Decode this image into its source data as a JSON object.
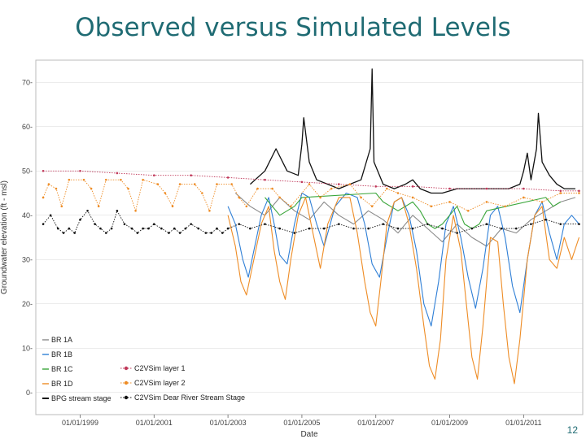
{
  "slide": {
    "title": "Observed versus Simulated Levels",
    "page_number": "12"
  },
  "colors": {
    "title": "#1f6b73",
    "br1a": "#8a8a8a",
    "br1b": "#2f7fd6",
    "br1c": "#3aa63a",
    "br1d": "#ee8c25",
    "stage_obs": "#111111",
    "layer1": "#c0395a",
    "layer2": "#ee8c25",
    "stage_sim": "#111111",
    "grid": "#d9d9d9"
  },
  "chart_data": {
    "type": "line",
    "title": "",
    "xlabel": "Date",
    "ylabel": "Groundwater elevation (ft - msl)",
    "xlim": [
      1997.8,
      2012.6
    ],
    "ylim": [
      -5,
      75
    ],
    "yticks": [
      0,
      10,
      20,
      30,
      40,
      50,
      60,
      70
    ],
    "ytick_labels": [
      "0-",
      "10-",
      "20-",
      "30-",
      "40-",
      "50-",
      "60-",
      "70-"
    ],
    "xticks": [
      1999,
      2001,
      2003,
      2005,
      2007,
      2009,
      2011
    ],
    "xtick_labels": [
      "01/01/1999",
      "01/01/2001",
      "01/01/2003",
      "01/01/2005",
      "01/01/2007",
      "01/01/2009",
      "01/01/2011"
    ],
    "legend_position": "bottom-left",
    "legend": [
      {
        "key": "br1a",
        "label": "BR 1A",
        "style": "line"
      },
      {
        "key": "br1b",
        "label": "BR 1B",
        "style": "line"
      },
      {
        "key": "br1c",
        "label": "BR 1C",
        "style": "line"
      },
      {
        "key": "br1d",
        "label": "BR 1D",
        "style": "line"
      },
      {
        "key": "stage_obs",
        "label": "BPG stream stage",
        "style": "line"
      },
      {
        "key": "layer1",
        "label": "C2VSim layer 1",
        "style": "dotline"
      },
      {
        "key": "layer2",
        "label": "C2VSim layer 2",
        "style": "dotline"
      },
      {
        "key": "stage_sim",
        "label": "C2VSim Dear River Stream Stage",
        "style": "dotline"
      }
    ],
    "series": [
      {
        "name": "BR 1A",
        "key": "br1a",
        "style": "line",
        "x": [
          2003.2,
          2003.6,
          2004.0,
          2004.4,
          2004.8,
          2005.2,
          2005.6,
          2006.0,
          2006.4,
          2006.8,
          2007.2,
          2007.6,
          2008.0,
          2008.4,
          2008.8,
          2009.2,
          2009.6,
          2010.0,
          2010.4,
          2010.8,
          2011.2,
          2011.6,
          2012.0,
          2012.4
        ],
        "y": [
          45,
          42,
          40,
          44,
          41,
          39,
          43,
          40,
          38,
          41,
          39,
          36,
          40,
          37,
          34,
          38,
          35,
          33,
          37,
          36,
          39,
          41,
          43,
          44
        ]
      },
      {
        "name": "BR 1B",
        "key": "br1b",
        "style": "line",
        "x": [
          2003.0,
          2003.2,
          2003.4,
          2003.55,
          2003.7,
          2003.9,
          2004.1,
          2004.25,
          2004.4,
          2004.6,
          2004.8,
          2005.0,
          2005.2,
          2005.4,
          2005.6,
          2005.9,
          2006.2,
          2006.5,
          2006.7,
          2006.9,
          2007.1,
          2007.3,
          2007.5,
          2007.7,
          2007.9,
          2008.1,
          2008.3,
          2008.5,
          2008.7,
          2008.9,
          2009.1,
          2009.3,
          2009.5,
          2009.7,
          2009.9,
          2010.1,
          2010.3,
          2010.5,
          2010.7,
          2010.9,
          2011.1,
          2011.3,
          2011.5,
          2011.7,
          2011.9,
          2012.1,
          2012.3,
          2012.5
        ],
        "y": [
          42,
          38,
          30,
          26,
          32,
          40,
          44,
          38,
          31,
          29,
          38,
          45,
          44,
          38,
          33,
          42,
          45,
          44,
          38,
          29,
          26,
          35,
          43,
          44,
          40,
          32,
          20,
          15,
          25,
          38,
          42,
          35,
          26,
          19,
          28,
          40,
          42,
          35,
          24,
          18,
          30,
          40,
          43,
          36,
          30,
          38,
          40,
          38
        ]
      },
      {
        "name": "BR 1C",
        "key": "br1c",
        "style": "line",
        "x": [
          2004.0,
          2004.2,
          2004.4,
          2004.6,
          2004.8,
          2005.0,
          2007.0,
          2007.2,
          2007.4,
          2007.6,
          2007.8,
          2008.0,
          2008.2,
          2008.4,
          2008.6,
          2008.8,
          2009.0,
          2009.2,
          2009.4,
          2009.6,
          2009.8,
          2010.0,
          2011.6,
          2011.8,
          2012.0
        ],
        "y": [
          44,
          42,
          40,
          41,
          42,
          44,
          45,
          43,
          42,
          41,
          42,
          43,
          41,
          38,
          37,
          38,
          40,
          42,
          38,
          37,
          38,
          41,
          44,
          42,
          43
        ]
      },
      {
        "name": "BR 1D",
        "key": "br1d",
        "style": "line",
        "x": [
          2003.0,
          2003.2,
          2003.35,
          2003.5,
          2003.7,
          2003.9,
          2004.1,
          2004.25,
          2004.4,
          2004.55,
          2004.7,
          2004.9,
          2005.1,
          2005.3,
          2005.5,
          2005.7,
          2006.0,
          2006.3,
          2006.5,
          2006.7,
          2006.85,
          2007.0,
          2007.15,
          2007.3,
          2007.5,
          2007.7,
          2007.9,
          2008.1,
          2008.3,
          2008.45,
          2008.6,
          2008.75,
          2008.9,
          2009.1,
          2009.3,
          2009.45,
          2009.6,
          2009.75,
          2009.9,
          2010.1,
          2010.3,
          2010.45,
          2010.6,
          2010.75,
          2010.9,
          2011.1,
          2011.3,
          2011.5,
          2011.7,
          2011.9,
          2012.1,
          2012.3,
          2012.5
        ],
        "y": [
          40,
          33,
          25,
          22,
          30,
          38,
          42,
          32,
          25,
          21,
          30,
          40,
          44,
          36,
          28,
          38,
          44,
          44,
          36,
          25,
          18,
          15,
          26,
          38,
          43,
          44,
          38,
          28,
          15,
          6,
          3,
          12,
          30,
          40,
          32,
          20,
          8,
          3,
          15,
          35,
          34,
          20,
          8,
          2,
          12,
          30,
          40,
          42,
          30,
          28,
          35,
          30,
          35
        ]
      },
      {
        "name": "BPG stream stage",
        "key": "stage_obs",
        "style": "line",
        "x": [
          2003.6,
          2004.0,
          2004.3,
          2004.6,
          2004.9,
          2005.0,
          2005.05,
          2005.2,
          2005.4,
          2005.7,
          2006.0,
          2006.3,
          2006.6,
          2006.85,
          2006.9,
          2006.95,
          2007.2,
          2007.5,
          2007.8,
          2008.0,
          2008.2,
          2008.5,
          2008.8,
          2009.2,
          2009.6,
          2010.0,
          2010.3,
          2010.6,
          2010.9,
          2011.0,
          2011.1,
          2011.2,
          2011.35,
          2011.4,
          2011.5,
          2011.7,
          2011.9,
          2012.1,
          2012.4
        ],
        "y": [
          47,
          50,
          55,
          50,
          49,
          56,
          62,
          52,
          48,
          47,
          46,
          47,
          48,
          55,
          73,
          52,
          47,
          46,
          47,
          48,
          46,
          45,
          45,
          46,
          46,
          46,
          46,
          46,
          47,
          50,
          54,
          48,
          55,
          63,
          52,
          49,
          47,
          46,
          46
        ]
      },
      {
        "name": "C2VSim layer 1",
        "key": "layer1",
        "style": "dotline",
        "x": [
          1998.0,
          1999.0,
          2000.0,
          2001.0,
          2002.0,
          2003.0,
          2004.0,
          2005.0,
          2006.0,
          2007.0,
          2008.0,
          2009.0,
          2010.0,
          2011.0,
          2012.0,
          2012.5
        ],
        "y": [
          50,
          50,
          49.5,
          49,
          49,
          48.5,
          48,
          47.5,
          47,
          46.5,
          46.5,
          46,
          46,
          46,
          45.5,
          45.5
        ]
      },
      {
        "name": "C2VSim layer 2",
        "key": "layer2",
        "style": "dotline",
        "x": [
          1998.0,
          1998.15,
          1998.35,
          1998.5,
          1998.7,
          1999.1,
          1999.3,
          1999.5,
          1999.7,
          2000.1,
          2000.3,
          2000.5,
          2000.7,
          2001.1,
          2001.3,
          2001.5,
          2001.7,
          2002.1,
          2002.3,
          2002.5,
          2002.7,
          2003.1,
          2003.3,
          2003.5,
          2003.8,
          2004.2,
          2004.4,
          2004.7,
          2005.2,
          2005.5,
          2005.8,
          2006.3,
          2006.6,
          2006.9,
          2007.3,
          2007.6,
          2008.0,
          2008.5,
          2009.0,
          2009.5,
          2010.0,
          2010.5,
          2011.0,
          2011.5,
          2012.0,
          2012.5
        ],
        "y": [
          44,
          47,
          46,
          42,
          48,
          48,
          46,
          42,
          48,
          48,
          46,
          41,
          48,
          47,
          45,
          42,
          47,
          47,
          45,
          41,
          47,
          47,
          44,
          42,
          46,
          46,
          44,
          42,
          47,
          44,
          46,
          47,
          44,
          42,
          46,
          45,
          44,
          42,
          43,
          41,
          43,
          42,
          44,
          43,
          45,
          45
        ]
      },
      {
        "name": "C2VSim Dear River Stream Stage",
        "key": "stage_sim",
        "style": "dotline",
        "x": [
          1998.0,
          1998.2,
          1998.4,
          1998.55,
          1998.7,
          1998.85,
          1999.0,
          1999.2,
          1999.4,
          1999.55,
          1999.7,
          1999.85,
          2000.0,
          2000.2,
          2000.4,
          2000.55,
          2000.7,
          2000.85,
          2001.0,
          2001.2,
          2001.4,
          2001.55,
          2001.7,
          2001.85,
          2002.0,
          2002.2,
          2002.4,
          2002.55,
          2002.7,
          2002.85,
          2003.0,
          2003.3,
          2003.6,
          2004.0,
          2004.4,
          2004.8,
          2005.2,
          2005.6,
          2006.0,
          2006.4,
          2006.8,
          2007.2,
          2007.6,
          2008.0,
          2008.4,
          2008.8,
          2009.2,
          2009.6,
          2010.0,
          2010.4,
          2010.8,
          2011.2,
          2011.6,
          2012.0,
          2012.5
        ],
        "y": [
          38,
          40,
          37,
          36,
          37,
          36,
          39,
          41,
          38,
          37,
          36,
          37,
          41,
          38,
          37,
          36,
          37,
          37,
          38,
          37,
          36,
          37,
          36,
          37,
          38,
          37,
          36,
          36,
          37,
          36,
          37,
          38,
          37,
          38,
          37,
          36,
          37,
          37,
          38,
          37,
          37,
          38,
          37,
          37,
          38,
          37,
          36,
          37,
          38,
          37,
          37,
          38,
          39,
          38,
          38
        ]
      }
    ]
  }
}
